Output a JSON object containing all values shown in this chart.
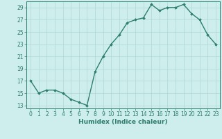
{
  "x": [
    0,
    1,
    2,
    3,
    4,
    5,
    6,
    7,
    8,
    9,
    10,
    11,
    12,
    13,
    14,
    15,
    16,
    17,
    18,
    19,
    20,
    21,
    22,
    23
  ],
  "y": [
    17,
    15,
    15.5,
    15.5,
    15,
    14,
    13.5,
    13,
    18.5,
    21,
    23,
    24.5,
    26.5,
    27,
    27.3,
    29.5,
    28.5,
    29,
    29,
    29.5,
    28,
    27,
    24.5,
    23
  ],
  "xlabel": "Humidex (Indice chaleur)",
  "ylim_min": 12.5,
  "ylim_max": 30,
  "xlim_min": -0.5,
  "xlim_max": 23.5,
  "yticks": [
    13,
    15,
    17,
    19,
    21,
    23,
    25,
    27,
    29
  ],
  "xticks": [
    0,
    1,
    2,
    3,
    4,
    5,
    6,
    7,
    8,
    9,
    10,
    11,
    12,
    13,
    14,
    15,
    16,
    17,
    18,
    19,
    20,
    21,
    22,
    23
  ],
  "line_color": "#2e7d6e",
  "bg_color": "#cdeeed",
  "grid_color": "#aed8d5",
  "marker_size": 2.0,
  "line_width": 1.0,
  "tick_fontsize": 5.5,
  "xlabel_fontsize": 6.5
}
